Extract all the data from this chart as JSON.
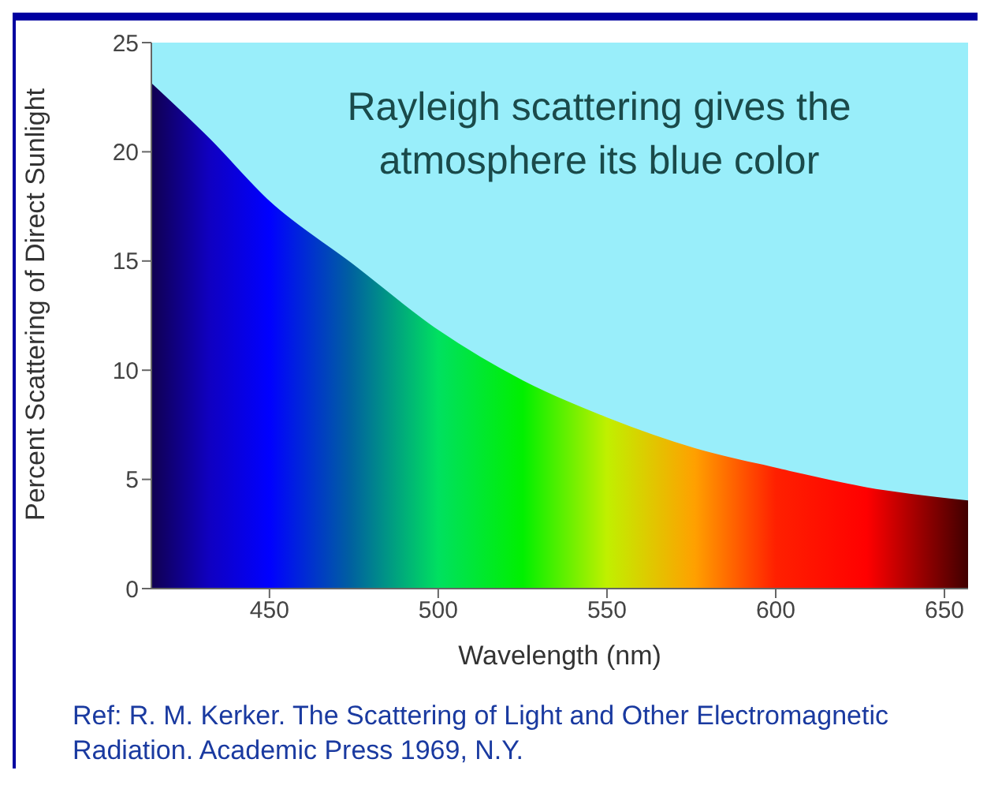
{
  "chart_data": {
    "type": "area",
    "xlabel": "Wavelength (nm)",
    "ylabel": "Percent Scattering of Direct Sunlight",
    "x": [
      415,
      432,
      450,
      474,
      500,
      525,
      550,
      576,
      600,
      627,
      657
    ],
    "series": [
      {
        "colors": [
          "#100050",
          "#1000c0",
          "#0000ff",
          "#0060a0",
          "#00e060",
          "#00f000",
          "#c0f000",
          "#ffa000",
          "#ff2000",
          "#ff0000",
          "#400000"
        ],
        "values": [
          23.1,
          20.6,
          17.7,
          14.9,
          11.8,
          9.5,
          7.8,
          6.4,
          5.5,
          4.6,
          4.0
        ]
      }
    ],
    "xlim": [
      415,
      657
    ],
    "ylim": [
      0,
      25
    ],
    "xticks": [
      450,
      500,
      550,
      600,
      650
    ],
    "yticks": [
      0,
      5,
      10,
      15,
      20,
      25
    ],
    "grid": false,
    "legend": false,
    "annotations": [
      "Rayleigh scattering gives the atmosphere its blue color",
      "Ref: R. M. Kerker. The Scattering of Light and Other Electromagnetic Radiation. Academic Press 1969, N.Y."
    ]
  }
}
